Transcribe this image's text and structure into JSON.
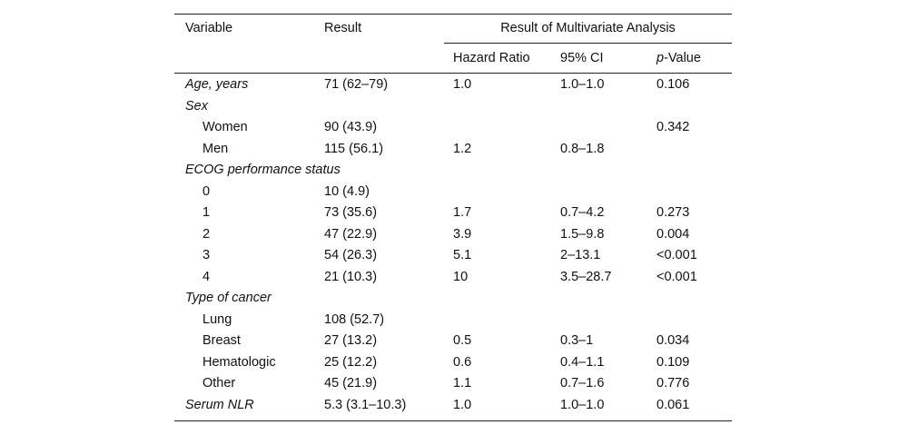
{
  "table": {
    "header": {
      "variable": "Variable",
      "result": "Result",
      "multivariate": "Result of Multivariate Analysis",
      "hazard_ratio": "Hazard Ratio",
      "ci": "95% CI",
      "p_value": {
        "italic": "p",
        "text": "-Value"
      }
    },
    "rows": [
      {
        "style": "group",
        "cells": [
          "Age, years",
          "71 (62–79)",
          "1.0",
          "1.0–1.0",
          "0.106"
        ]
      },
      {
        "style": "group",
        "cells": [
          "Sex",
          null,
          null,
          null,
          null
        ]
      },
      {
        "style": "item",
        "cells": [
          "Women",
          "90 (43.9)",
          null,
          null,
          "0.342"
        ]
      },
      {
        "style": "item",
        "cells": [
          "Men",
          "115 (56.1)",
          "1.2",
          "0.8–1.8",
          null
        ]
      },
      {
        "style": "group",
        "cells": [
          "ECOG performance status",
          null,
          null,
          null,
          null
        ]
      },
      {
        "style": "item",
        "cells": [
          "0",
          "10 (4.9)",
          null,
          null,
          null
        ]
      },
      {
        "style": "item",
        "cells": [
          "1",
          "73 (35.6)",
          "1.7",
          "0.7–4.2",
          "0.273"
        ]
      },
      {
        "style": "item",
        "cells": [
          "2",
          "47 (22.9)",
          "3.9",
          "1.5–9.8",
          "0.004"
        ]
      },
      {
        "style": "item",
        "cells": [
          "3",
          "54 (26.3)",
          "5.1",
          "2–13.1",
          "<0.001"
        ]
      },
      {
        "style": "item",
        "cells": [
          "4",
          "21 (10.3)",
          "10",
          "3.5–28.7",
          "<0.001"
        ]
      },
      {
        "style": "group",
        "cells": [
          "Type of cancer",
          null,
          null,
          null,
          null
        ]
      },
      {
        "style": "item",
        "cells": [
          "Lung",
          "108 (52.7)",
          null,
          null,
          null
        ]
      },
      {
        "style": "item",
        "cells": [
          "Breast",
          "27 (13.2)",
          "0.5",
          "0.3–1",
          "0.034"
        ]
      },
      {
        "style": "item",
        "cells": [
          "Hematologic",
          "25 (12.2)",
          "0.6",
          "0.4–1.1",
          "0.109"
        ]
      },
      {
        "style": "item",
        "cells": [
          "Other",
          "45 (21.9)",
          "1.1",
          "0.7–1.6",
          "0.776"
        ]
      },
      {
        "style": "group",
        "cells": [
          "Serum NLR",
          "5.3 (3.1–10.3)",
          "1.0",
          "1.0–1.0",
          "0.061"
        ]
      }
    ]
  }
}
